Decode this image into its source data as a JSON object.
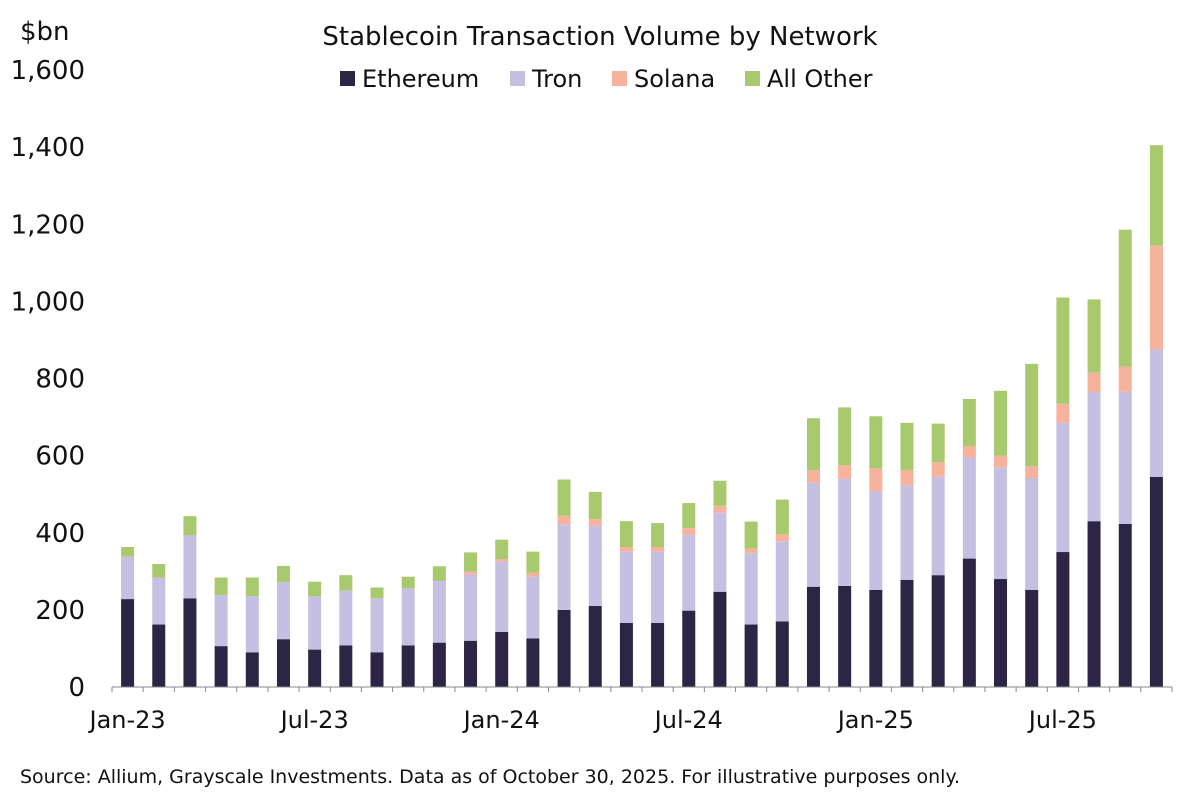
{
  "chart_data": {
    "type": "bar",
    "stacked": true,
    "title": "Stablecoin Transaction Volume by Network",
    "ylabel": "$bn",
    "xlabel": "",
    "ylim": [
      0,
      1600
    ],
    "yticks": [
      "0",
      "200",
      "400",
      "600",
      "800",
      "1,000",
      "1,200",
      "1,400",
      "1,600"
    ],
    "grid": false,
    "legend_position": "top",
    "x_tick_labels": [
      {
        "index": 0,
        "label": "Jan-23"
      },
      {
        "index": 6,
        "label": "Jul-23"
      },
      {
        "index": 12,
        "label": "Jan-24"
      },
      {
        "index": 18,
        "label": "Jul-24"
      },
      {
        "index": 24,
        "label": "Jan-25"
      },
      {
        "index": 30,
        "label": "Jul-25"
      }
    ],
    "categories": [
      "Jan-23",
      "Feb-23",
      "Mar-23",
      "Apr-23",
      "May-23",
      "Jun-23",
      "Jul-23",
      "Aug-23",
      "Sep-23",
      "Oct-23",
      "Nov-23",
      "Dec-23",
      "Jan-24",
      "Feb-24",
      "Mar-24",
      "Apr-24",
      "May-24",
      "Jun-24",
      "Jul-24",
      "Aug-24",
      "Sep-24",
      "Oct-24",
      "Nov-24",
      "Dec-24",
      "Jan-25",
      "Feb-25",
      "Mar-25",
      "Apr-25",
      "May-25",
      "Jun-25",
      "Jul-25",
      "Aug-25",
      "Sep-25",
      "Oct-25"
    ],
    "series": [
      {
        "name": "Ethereum",
        "color": "#2d2545",
        "values": [
          228,
          162,
          230,
          106,
          90,
          124,
          97,
          108,
          90,
          108,
          115,
          120,
          143,
          126,
          200,
          210,
          166,
          166,
          198,
          247,
          162,
          170,
          260,
          262,
          252,
          278,
          290,
          333,
          280,
          252,
          350,
          430,
          423,
          545
        ]
      },
      {
        "name": "Tron",
        "color": "#c5bfe2",
        "values": [
          110,
          122,
          163,
          133,
          146,
          148,
          138,
          142,
          140,
          148,
          160,
          172,
          182,
          160,
          222,
          208,
          185,
          185,
          196,
          205,
          185,
          208,
          270,
          278,
          255,
          245,
          255,
          262,
          290,
          290,
          335,
          335,
          343,
          330
        ]
      },
      {
        "name": "Solana",
        "color": "#f7b29c",
        "values": [
          0,
          0,
          0,
          0,
          0,
          0,
          0,
          0,
          0,
          0,
          0,
          7,
          7,
          10,
          22,
          17,
          12,
          12,
          18,
          18,
          12,
          18,
          32,
          35,
          60,
          40,
          38,
          30,
          30,
          30,
          50,
          50,
          65,
          270
        ]
      },
      {
        "name": "All Other",
        "color": "#a8c96e",
        "values": [
          25,
          35,
          50,
          45,
          48,
          42,
          38,
          40,
          28,
          30,
          38,
          50,
          50,
          55,
          94,
          71,
          67,
          62,
          65,
          65,
          70,
          90,
          135,
          150,
          135,
          122,
          100,
          122,
          168,
          266,
          275,
          190,
          355,
          260
        ]
      }
    ]
  },
  "footer": {
    "source": "Source: Allium, Grayscale Investments. Data as of October 30, 2025. For illustrative purposes only."
  }
}
